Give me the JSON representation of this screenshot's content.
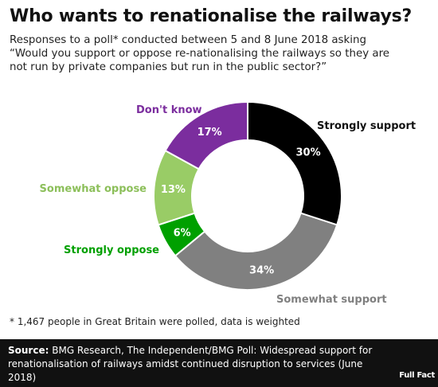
{
  "header": {
    "title": "Who wants to renationalise the railways?",
    "subtitle_lines": [
      "Responses to a poll* conducted between 5 and 8 June 2018 asking",
      "“Would you support or oppose re-nationalising the railways so they are",
      "not run by private companies but run in the public sector?”"
    ]
  },
  "chart_data": {
    "type": "pie",
    "donut": true,
    "categories": [
      "Strongly support",
      "Somewhat support",
      "Strongly oppose",
      "Somewhat oppose",
      "Don't know"
    ],
    "values": [
      30,
      34,
      6,
      13,
      17
    ],
    "value_labels": [
      "30%",
      "34%",
      "6%",
      "13%",
      "17%"
    ],
    "colors": [
      "#000000",
      "#808080",
      "#00a000",
      "#99cc66",
      "#7b2d9e"
    ],
    "label_colors": [
      "#111111",
      "#808080",
      "#00a000",
      "#8cbf5a",
      "#7b2d9e"
    ],
    "value_text_colors": [
      "#ffffff",
      "#ffffff",
      "#ffffff",
      "#ffffff",
      "#ffffff"
    ],
    "legend": "direct labels"
  },
  "footnote": "* 1,467 people in Great Britain were polled, data is weighted",
  "source": {
    "label": "Source:",
    "text": "BMG Research, The Independent/BMG Poll: Widespread support for renationalisation of railways amidst continued disruption to services (June 2018)"
  },
  "logo": {
    "text": "Full Fact"
  }
}
